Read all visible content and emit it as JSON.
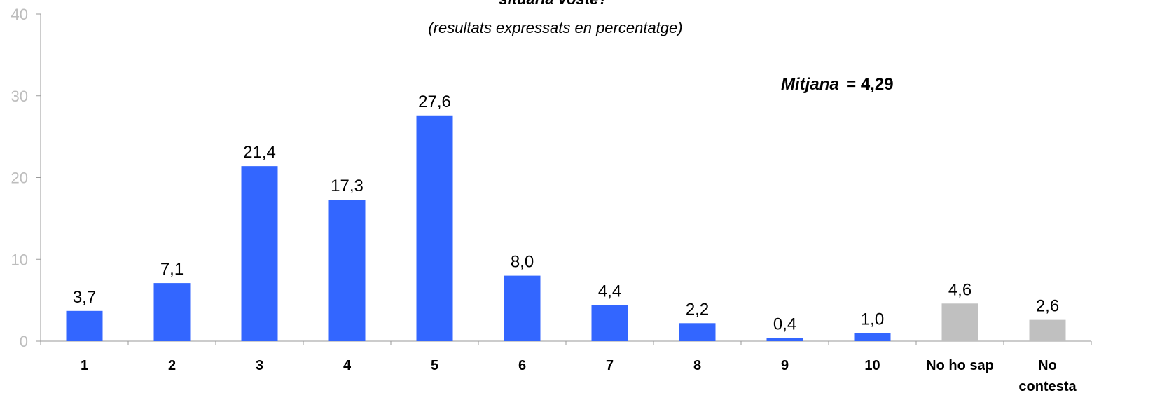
{
  "chart_data": {
    "type": "bar",
    "title": "situaria vostè?",
    "subtitle": "(resultats expressats en percentatge)",
    "categories": [
      "1",
      "2",
      "3",
      "4",
      "5",
      "6",
      "7",
      "8",
      "9",
      "10",
      "No ho sap",
      "No contesta"
    ],
    "values": [
      3.7,
      7.1,
      21.4,
      17.3,
      27.6,
      8.0,
      4.4,
      2.2,
      0.4,
      1.0,
      4.6,
      2.6
    ],
    "value_labels": [
      "3,7",
      "7,1",
      "21,4",
      "17,3",
      "27,6",
      "8,0",
      "4,4",
      "2,2",
      "0,4",
      "1,0",
      "4,6",
      "2,6"
    ],
    "bar_colors": [
      "#3366ff",
      "#3366ff",
      "#3366ff",
      "#3366ff",
      "#3366ff",
      "#3366ff",
      "#3366ff",
      "#3366ff",
      "#3366ff",
      "#3366ff",
      "#c0c0c0",
      "#c0c0c0"
    ],
    "ylim": [
      0,
      40
    ],
    "yticks": [
      "0",
      "10",
      "20",
      "30",
      "40"
    ],
    "xlabel": "",
    "ylabel": "",
    "grid": false,
    "annotation": {
      "label": "Mitjana",
      "value": "= 4,29"
    }
  }
}
